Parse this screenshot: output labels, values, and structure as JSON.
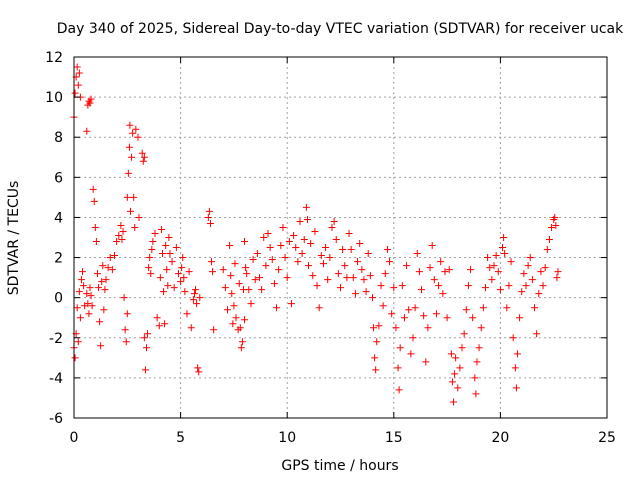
{
  "chart_data": {
    "type": "scatter",
    "title": "Day 340 of 2025, Sidereal Day-to-day VTEC variation (SDTVAR) for receiver ucak",
    "xlabel": "GPS time / hours",
    "ylabel": "SDTVAR / TECUs",
    "xlim": [
      0,
      25
    ],
    "ylim": [
      -6,
      12
    ],
    "xticks": [
      0,
      5,
      10,
      15,
      20,
      25
    ],
    "yticks": [
      -6,
      -4,
      -2,
      0,
      2,
      4,
      6,
      8,
      10,
      12
    ],
    "grid": true,
    "marker": "+",
    "color": "#ff0000",
    "series": [
      {
        "name": "SDTVAR",
        "points": [
          [
            0.0,
            9.0
          ],
          [
            0.05,
            10.2
          ],
          [
            0.1,
            11.0
          ],
          [
            0.15,
            11.5
          ],
          [
            0.2,
            10.6
          ],
          [
            0.25,
            11.2
          ],
          [
            0.3,
            10.0
          ],
          [
            0.0,
            -2.5
          ],
          [
            0.05,
            -3.0
          ],
          [
            0.1,
            -1.8
          ],
          [
            0.15,
            -0.5
          ],
          [
            0.2,
            -2.2
          ],
          [
            0.25,
            0.3
          ],
          [
            0.3,
            -1.0
          ],
          [
            0.35,
            0.9
          ],
          [
            0.4,
            1.3
          ],
          [
            0.45,
            0.6
          ],
          [
            0.5,
            -0.4
          ],
          [
            0.6,
            8.3
          ],
          [
            0.65,
            9.6
          ],
          [
            0.7,
            9.8
          ],
          [
            0.75,
            9.7
          ],
          [
            0.8,
            9.9
          ],
          [
            0.6,
            0.2
          ],
          [
            0.65,
            -0.3
          ],
          [
            0.7,
            -0.8
          ],
          [
            0.75,
            0.5
          ],
          [
            0.8,
            0.1
          ],
          [
            0.85,
            -0.4
          ],
          [
            0.9,
            5.4
          ],
          [
            0.95,
            4.8
          ],
          [
            1.0,
            3.5
          ],
          [
            1.05,
            2.8
          ],
          [
            1.1,
            1.2
          ],
          [
            1.15,
            0.5
          ],
          [
            1.2,
            -1.2
          ],
          [
            1.25,
            -2.4
          ],
          [
            1.3,
            0.8
          ],
          [
            1.35,
            1.6
          ],
          [
            1.4,
            -0.6
          ],
          [
            1.45,
            0.4
          ],
          [
            1.5,
            0.9
          ],
          [
            1.6,
            1.5
          ],
          [
            1.7,
            2.0
          ],
          [
            1.8,
            1.4
          ],
          [
            1.9,
            2.1
          ],
          [
            2.0,
            2.8
          ],
          [
            2.1,
            3.1
          ],
          [
            2.2,
            3.6
          ],
          [
            2.25,
            2.9
          ],
          [
            2.3,
            3.3
          ],
          [
            2.35,
            0.0
          ],
          [
            2.4,
            -1.6
          ],
          [
            2.45,
            -2.2
          ],
          [
            2.5,
            -0.8
          ],
          [
            2.5,
            5.0
          ],
          [
            2.55,
            6.2
          ],
          [
            2.6,
            7.5
          ],
          [
            2.62,
            8.6
          ],
          [
            2.65,
            4.3
          ],
          [
            2.7,
            7.0
          ],
          [
            2.75,
            8.2
          ],
          [
            2.8,
            5.0
          ],
          [
            2.85,
            3.5
          ],
          [
            2.9,
            8.4
          ],
          [
            3.0,
            8.0
          ],
          [
            3.05,
            4.0
          ],
          [
            3.2,
            7.2
          ],
          [
            3.25,
            6.8
          ],
          [
            3.3,
            7.0
          ],
          [
            3.3,
            -2.0
          ],
          [
            3.35,
            -3.6
          ],
          [
            3.4,
            -2.5
          ],
          [
            3.45,
            -1.8
          ],
          [
            3.5,
            1.5
          ],
          [
            3.55,
            2.0
          ],
          [
            3.6,
            1.2
          ],
          [
            3.65,
            2.4
          ],
          [
            3.7,
            2.8
          ],
          [
            3.8,
            3.2
          ],
          [
            3.9,
            -1.0
          ],
          [
            4.0,
            -1.4
          ],
          [
            4.05,
            1.0
          ],
          [
            4.1,
            3.4
          ],
          [
            4.15,
            2.2
          ],
          [
            4.2,
            0.3
          ],
          [
            4.25,
            -1.3
          ],
          [
            4.3,
            2.6
          ],
          [
            4.35,
            1.4
          ],
          [
            4.4,
            0.6
          ],
          [
            4.45,
            3.0
          ],
          [
            4.5,
            2.2
          ],
          [
            4.6,
            1.8
          ],
          [
            4.7,
            0.5
          ],
          [
            4.8,
            2.5
          ],
          [
            4.9,
            1.2
          ],
          [
            5.0,
            0.8
          ],
          [
            5.05,
            1.5
          ],
          [
            5.1,
            2.0
          ],
          [
            5.15,
            1.0
          ],
          [
            5.2,
            0.3
          ],
          [
            5.3,
            -0.8
          ],
          [
            5.4,
            1.3
          ],
          [
            5.5,
            -1.5
          ],
          [
            5.6,
            -0.1
          ],
          [
            5.65,
            0.2
          ],
          [
            5.7,
            0.4
          ],
          [
            5.75,
            -0.3
          ],
          [
            5.8,
            -3.5
          ],
          [
            5.85,
            -3.7
          ],
          [
            5.9,
            0.0
          ],
          [
            6.3,
            4.0
          ],
          [
            6.35,
            4.3
          ],
          [
            6.4,
            3.7
          ],
          [
            6.45,
            1.8
          ],
          [
            6.5,
            1.3
          ],
          [
            6.55,
            -1.6
          ],
          [
            7.0,
            1.4
          ],
          [
            7.1,
            0.5
          ],
          [
            7.2,
            -0.6
          ],
          [
            7.3,
            2.6
          ],
          [
            7.35,
            1.1
          ],
          [
            7.4,
            0.2
          ],
          [
            7.45,
            -1.3
          ],
          [
            7.5,
            -0.4
          ],
          [
            7.55,
            1.7
          ],
          [
            7.6,
            -1.0
          ],
          [
            7.7,
            -1.6
          ],
          [
            7.75,
            0.7
          ],
          [
            7.8,
            -1.5
          ],
          [
            7.85,
            -2.5
          ],
          [
            7.9,
            -2.2
          ],
          [
            7.95,
            0.4
          ],
          [
            8.0,
            -1.1
          ],
          [
            8.0,
            2.8
          ],
          [
            8.05,
            1.5
          ],
          [
            8.1,
            1.2
          ],
          [
            8.2,
            0.4
          ],
          [
            8.3,
            -0.3
          ],
          [
            8.4,
            1.9
          ],
          [
            8.5,
            0.9
          ],
          [
            8.6,
            2.2
          ],
          [
            8.7,
            1.0
          ],
          [
            8.8,
            0.4
          ],
          [
            8.9,
            3.0
          ],
          [
            9.0,
            1.6
          ],
          [
            9.1,
            3.2
          ],
          [
            9.2,
            2.5
          ],
          [
            9.3,
            1.9
          ],
          [
            9.4,
            0.7
          ],
          [
            9.5,
            -0.5
          ],
          [
            9.6,
            1.4
          ],
          [
            9.7,
            2.6
          ],
          [
            9.8,
            3.5
          ],
          [
            9.9,
            2.0
          ],
          [
            10.0,
            1.0
          ],
          [
            10.1,
            2.8
          ],
          [
            10.2,
            -0.3
          ],
          [
            10.3,
            3.1
          ],
          [
            10.4,
            2.5
          ],
          [
            10.5,
            1.8
          ],
          [
            10.6,
            3.8
          ],
          [
            10.7,
            2.2
          ],
          [
            10.8,
            2.9
          ],
          [
            10.9,
            4.5
          ],
          [
            10.95,
            3.9
          ],
          [
            11.0,
            1.6
          ],
          [
            11.1,
            2.7
          ],
          [
            11.2,
            1.1
          ],
          [
            11.3,
            3.3
          ],
          [
            11.4,
            0.6
          ],
          [
            11.5,
            -0.5
          ],
          [
            11.6,
            2.1
          ],
          [
            11.7,
            1.7
          ],
          [
            11.8,
            2.5
          ],
          [
            11.9,
            0.9
          ],
          [
            12.0,
            2.0
          ],
          [
            12.1,
            3.5
          ],
          [
            12.2,
            3.8
          ],
          [
            12.3,
            2.9
          ],
          [
            12.4,
            1.2
          ],
          [
            12.5,
            0.5
          ],
          [
            12.6,
            2.4
          ],
          [
            12.7,
            1.6
          ],
          [
            12.8,
            1.0
          ],
          [
            12.9,
            3.2
          ],
          [
            13.0,
            2.4
          ],
          [
            13.1,
            1.0
          ],
          [
            13.2,
            0.2
          ],
          [
            13.3,
            1.8
          ],
          [
            13.4,
            2.7
          ],
          [
            13.5,
            1.4
          ],
          [
            13.6,
            0.9
          ],
          [
            13.7,
            0.3
          ],
          [
            13.8,
            2.2
          ],
          [
            13.9,
            1.1
          ],
          [
            14.0,
            0.0
          ],
          [
            14.05,
            -1.5
          ],
          [
            14.1,
            -3.0
          ],
          [
            14.15,
            -3.6
          ],
          [
            14.2,
            -2.2
          ],
          [
            14.3,
            -1.4
          ],
          [
            14.4,
            0.6
          ],
          [
            14.5,
            -0.4
          ],
          [
            14.6,
            1.2
          ],
          [
            14.7,
            2.4
          ],
          [
            14.8,
            1.8
          ],
          [
            14.9,
            -0.8
          ],
          [
            15.0,
            0.5
          ],
          [
            15.1,
            -1.5
          ],
          [
            15.2,
            -3.5
          ],
          [
            15.25,
            -4.6
          ],
          [
            15.3,
            -2.5
          ],
          [
            15.4,
            0.6
          ],
          [
            15.5,
            -1.0
          ],
          [
            15.6,
            1.6
          ],
          [
            15.7,
            -0.6
          ],
          [
            15.8,
            -2.8
          ],
          [
            15.9,
            -2.0
          ],
          [
            16.0,
            -0.5
          ],
          [
            16.1,
            2.2
          ],
          [
            16.2,
            1.3
          ],
          [
            16.3,
            0.4
          ],
          [
            16.4,
            -0.9
          ],
          [
            16.5,
            -3.2
          ],
          [
            16.6,
            -1.5
          ],
          [
            16.7,
            1.5
          ],
          [
            16.8,
            2.6
          ],
          [
            16.9,
            0.9
          ],
          [
            17.0,
            -0.8
          ],
          [
            17.1,
            0.6
          ],
          [
            17.2,
            1.8
          ],
          [
            17.3,
            0.2
          ],
          [
            17.4,
            1.3
          ],
          [
            17.5,
            -1.0
          ],
          [
            17.6,
            1.4
          ],
          [
            17.7,
            -2.8
          ],
          [
            17.75,
            -4.2
          ],
          [
            17.8,
            -5.2
          ],
          [
            17.85,
            -3.8
          ],
          [
            17.9,
            -3.0
          ],
          [
            18.0,
            -4.5
          ],
          [
            18.1,
            -3.5
          ],
          [
            18.2,
            -2.5
          ],
          [
            18.3,
            -1.8
          ],
          [
            18.4,
            -0.6
          ],
          [
            18.5,
            0.6
          ],
          [
            18.6,
            1.4
          ],
          [
            18.7,
            -1.0
          ],
          [
            18.8,
            -4.0
          ],
          [
            18.85,
            -4.8
          ],
          [
            18.9,
            -3.2
          ],
          [
            19.0,
            -2.5
          ],
          [
            19.1,
            -1.5
          ],
          [
            19.2,
            -0.5
          ],
          [
            19.3,
            0.5
          ],
          [
            19.4,
            2.0
          ],
          [
            19.5,
            1.5
          ],
          [
            19.6,
            0.9
          ],
          [
            19.7,
            1.6
          ],
          [
            19.8,
            2.1
          ],
          [
            19.9,
            1.3
          ],
          [
            20.0,
            0.4
          ],
          [
            20.1,
            2.5
          ],
          [
            20.15,
            3.0
          ],
          [
            20.2,
            2.2
          ],
          [
            20.3,
            -0.5
          ],
          [
            20.4,
            0.6
          ],
          [
            20.5,
            1.8
          ],
          [
            20.6,
            -2.0
          ],
          [
            20.7,
            -3.5
          ],
          [
            20.75,
            -4.5
          ],
          [
            20.8,
            -2.8
          ],
          [
            20.9,
            -1.0
          ],
          [
            21.0,
            0.3
          ],
          [
            21.1,
            1.2
          ],
          [
            21.2,
            0.6
          ],
          [
            21.3,
            1.6
          ],
          [
            21.4,
            2.0
          ],
          [
            21.5,
            0.9
          ],
          [
            21.6,
            -0.5
          ],
          [
            21.7,
            -1.8
          ],
          [
            21.8,
            0.2
          ],
          [
            21.9,
            1.3
          ],
          [
            22.0,
            0.6
          ],
          [
            22.1,
            1.5
          ],
          [
            22.2,
            2.4
          ],
          [
            22.3,
            2.9
          ],
          [
            22.4,
            3.5
          ],
          [
            22.5,
            3.9
          ],
          [
            22.55,
            4.0
          ],
          [
            22.6,
            3.6
          ],
          [
            22.65,
            1.0
          ],
          [
            22.7,
            1.3
          ]
        ]
      }
    ]
  }
}
